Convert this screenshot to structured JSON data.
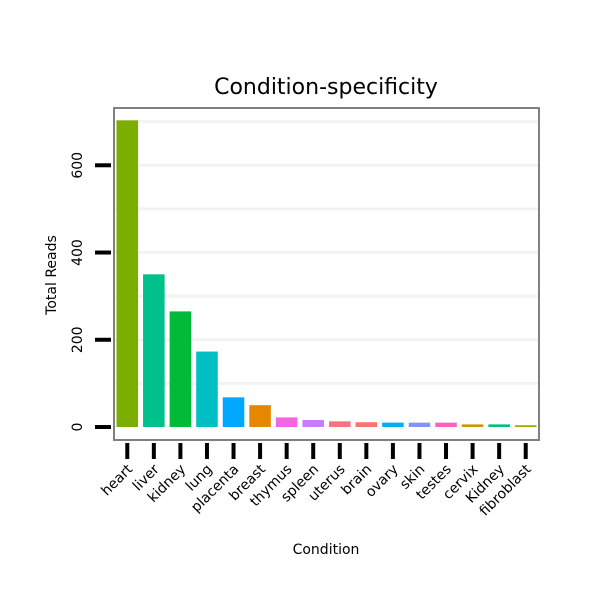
{
  "chart_data": {
    "type": "bar",
    "title": "Condition-specificity",
    "xlabel": "Condition",
    "ylabel": "Total Reads",
    "ylim": [
      0,
      700
    ],
    "yticks": [
      0,
      200,
      400,
      600
    ],
    "grid": true,
    "categories": [
      "heart",
      "liver",
      "kidney",
      "lung",
      "placenta",
      "breast",
      "thymus",
      "spleen",
      "uterus",
      "brain",
      "ovary",
      "skin",
      "testes",
      "cervix",
      "Kidney",
      "fibroblast"
    ],
    "values": [
      703,
      350,
      265,
      173,
      68,
      50,
      22,
      16,
      13,
      11,
      10,
      10,
      10,
      6,
      6,
      4
    ],
    "colors": [
      "#7cae00",
      "#00c08b",
      "#00ba38",
      "#00bfc4",
      "#00a9ff",
      "#e58700",
      "#f564e3",
      "#c77cff",
      "#fc717f",
      "#f8766d",
      "#00b0f6",
      "#8494ff",
      "#ff61c3",
      "#c99800",
      "#00bf7d",
      "#a3a500"
    ]
  }
}
